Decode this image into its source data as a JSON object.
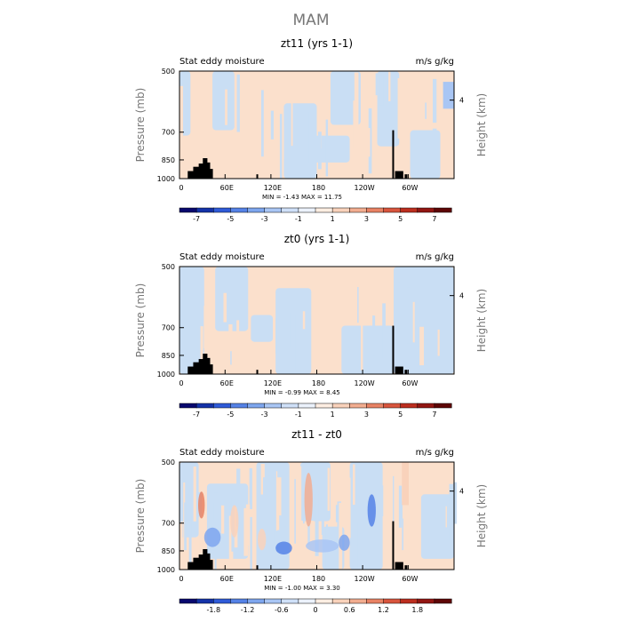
{
  "title": "MAM",
  "colors": {
    "positive_light": "#fbe0cc",
    "negative_light": "#c9def4",
    "terrain": "#000000"
  },
  "chart_data": [
    {
      "type": "heatmap",
      "title": "zt11 (yrs 1-1)",
      "left_label": "Stat eddy moisture",
      "right_label": "m/s g/kg",
      "ylabel": "Pressure (mb)",
      "ylabel_right": "Height (km)",
      "yticks": [
        "500",
        "700",
        "850",
        "1000"
      ],
      "yticks_right": [
        "4"
      ],
      "xticks": [
        "0",
        "60E",
        "120E",
        "180",
        "120W",
        "60W"
      ],
      "minmax_text": "MIN = -1.43   MAX = 11.75",
      "colorbar_ticks": [
        "-7",
        "-5",
        "-3",
        "-1",
        "1",
        "3",
        "5",
        "7"
      ],
      "colorbar_colors": [
        "#08086e",
        "#1432a8",
        "#2f5bd8",
        "#5582e6",
        "#7ea6ee",
        "#a9c6f4",
        "#cfe0f8",
        "#ecf2fc",
        "#fdeee2",
        "#f9d2bb",
        "#f2ad90",
        "#e88264",
        "#d8553d",
        "#bc2e1f",
        "#921612",
        "#5e0606"
      ]
    },
    {
      "type": "heatmap",
      "title": "zt0 (yrs 1-1)",
      "left_label": "Stat eddy moisture",
      "right_label": "m/s g/kg",
      "ylabel": "Pressure (mb)",
      "ylabel_right": "Height (km)",
      "yticks": [
        "500",
        "700",
        "850",
        "1000"
      ],
      "yticks_right": [
        "4"
      ],
      "xticks": [
        "0",
        "60E",
        "120E",
        "180",
        "120W",
        "60W"
      ],
      "minmax_text": "MIN = -0.99   MAX = 8.45",
      "colorbar_ticks": [
        "-7",
        "-5",
        "-3",
        "-1",
        "1",
        "3",
        "5",
        "7"
      ],
      "colorbar_colors": [
        "#08086e",
        "#1432a8",
        "#2f5bd8",
        "#5582e6",
        "#7ea6ee",
        "#a9c6f4",
        "#cfe0f8",
        "#ecf2fc",
        "#fdeee2",
        "#f9d2bb",
        "#f2ad90",
        "#e88264",
        "#d8553d",
        "#bc2e1f",
        "#921612",
        "#5e0606"
      ]
    },
    {
      "type": "heatmap",
      "title": "zt11 - zt0",
      "left_label": "Stat eddy moisture",
      "right_label": "m/s g/kg",
      "ylabel": "Pressure (mb)",
      "ylabel_right": "Height (km)",
      "yticks": [
        "500",
        "700",
        "850",
        "1000"
      ],
      "yticks_right": [
        "4"
      ],
      "xticks": [
        "0",
        "60E",
        "120E",
        "180",
        "120W",
        "60W"
      ],
      "minmax_text": "MIN = -1.00   MAX = 3.30",
      "colorbar_ticks": [
        "-1.8",
        "-1.2",
        "-0.6",
        "0",
        "0.6",
        "1.2",
        "1.8"
      ],
      "colorbar_colors": [
        "#08086e",
        "#1432a8",
        "#2f5bd8",
        "#5582e6",
        "#7ea6ee",
        "#a9c6f4",
        "#cfe0f8",
        "#ecf2fc",
        "#fdeee2",
        "#f9d2bb",
        "#f2ad90",
        "#e88264",
        "#d8553d",
        "#bc2e1f",
        "#921612",
        "#5e0606"
      ]
    }
  ]
}
